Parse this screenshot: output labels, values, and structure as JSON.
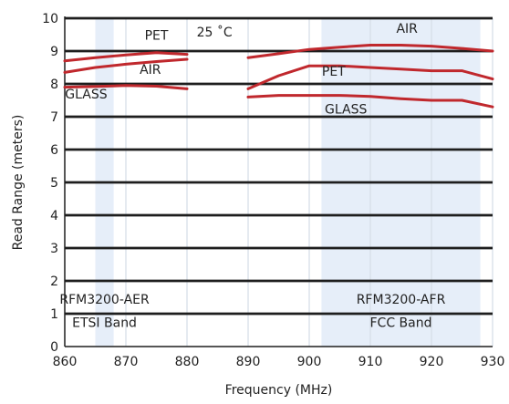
{
  "chart_data": {
    "type": "line",
    "xlabel": "Frequency (MHz)",
    "ylabel": "Read Range (meters)",
    "xlim": [
      860,
      930
    ],
    "ylim": [
      0,
      10
    ],
    "x_ticks": [
      "860",
      "870",
      "880",
      "890",
      "900",
      "910",
      "920",
      "930"
    ],
    "y_ticks": [
      "0",
      "1",
      "2",
      "3",
      "4",
      "5",
      "6",
      "7",
      "8",
      "9",
      "10"
    ],
    "grid": true,
    "bands": [
      {
        "label": "RFM3200-AER",
        "sublabel": "ETSI Band",
        "x_range": [
          865,
          868
        ],
        "color": "#e6eef9"
      },
      {
        "label": "RFM3200-AFR",
        "sublabel": "FCC Band",
        "x_range": [
          902,
          928
        ],
        "color": "#e6eef9"
      }
    ],
    "annotation": "25 ˚C",
    "series_color": "#c0282d",
    "series": [
      {
        "name": "PET",
        "x": [
          860,
          865,
          870,
          875,
          880
        ],
        "y": [
          8.7,
          8.8,
          8.88,
          8.95,
          8.9
        ]
      },
      {
        "name": "AIR",
        "x": [
          860,
          865,
          870,
          875,
          880
        ],
        "y": [
          8.35,
          8.5,
          8.6,
          8.68,
          8.75
        ]
      },
      {
        "name": "GLASS",
        "x": [
          860,
          865,
          870,
          875,
          880
        ],
        "y": [
          7.9,
          7.92,
          7.95,
          7.93,
          7.85
        ]
      },
      {
        "name": "AIR",
        "x": [
          890,
          895,
          900,
          905,
          910,
          915,
          920,
          925,
          930
        ],
        "y": [
          8.8,
          8.92,
          9.05,
          9.12,
          9.18,
          9.18,
          9.15,
          9.08,
          9.0
        ]
      },
      {
        "name": "PET",
        "x": [
          890,
          895,
          900,
          905,
          910,
          915,
          920,
          925,
          930
        ],
        "y": [
          7.85,
          8.25,
          8.55,
          8.55,
          8.5,
          8.45,
          8.4,
          8.4,
          8.15
        ]
      },
      {
        "name": "GLASS",
        "x": [
          890,
          895,
          900,
          905,
          910,
          915,
          920,
          925,
          930
        ],
        "y": [
          7.6,
          7.65,
          7.65,
          7.65,
          7.62,
          7.55,
          7.5,
          7.5,
          7.3
        ]
      }
    ],
    "series_labels": [
      {
        "text": "PET",
        "x": 875,
        "y": 9.35
      },
      {
        "text": "AIR",
        "x": 874,
        "y": 8.3
      },
      {
        "text": "GLASS",
        "x": 863.5,
        "y": 7.55
      },
      {
        "text": "AIR",
        "x": 916,
        "y": 9.55
      },
      {
        "text": "PET",
        "x": 904,
        "y": 8.25
      },
      {
        "text": "GLASS",
        "x": 906,
        "y": 7.1
      }
    ]
  }
}
